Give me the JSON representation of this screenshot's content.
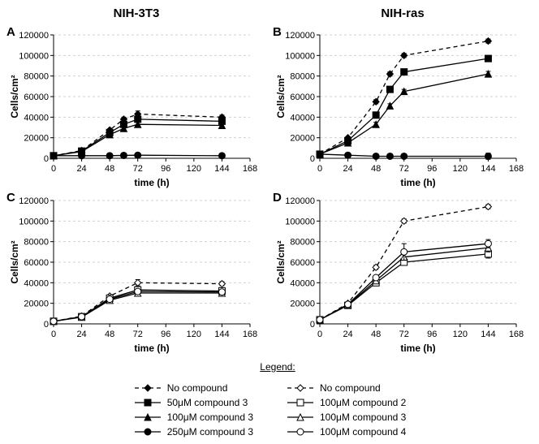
{
  "figure": {
    "columns": [
      "NIH-3T3",
      "NIH-ras"
    ],
    "panel_letters": [
      "A",
      "B",
      "C",
      "D"
    ],
    "x_axis": {
      "label": "time (h)",
      "min": 0,
      "max": 168,
      "tick_step": 24
    },
    "y_axis": {
      "label": "Cells/cm²",
      "min": 0,
      "max": 120000,
      "tick_step": 20000
    },
    "grid_color": "#d0d0d0",
    "background_color": "#ffffff",
    "axis_color": "#000000",
    "label_fontsize": 12,
    "title_fontsize": 15,
    "panels": {
      "A": {
        "series": [
          {
            "name": "no-compound",
            "marker": "diamond",
            "fill": "#000",
            "dash": true,
            "x": [
              0,
              24,
              48,
              60,
              72,
              144
            ],
            "y": [
              2500,
              7500,
              27500,
              38000,
              43000,
              40000
            ],
            "err": [
              0,
              0,
              0,
              2000,
              3000,
              2000
            ]
          },
          {
            "name": "50um-c3",
            "marker": "square",
            "fill": "#000",
            "dash": false,
            "x": [
              0,
              24,
              48,
              60,
              72,
              144
            ],
            "y": [
              2500,
              7000,
              25000,
              33000,
              38000,
              36000
            ],
            "err": [
              0,
              0,
              0,
              2000,
              2500,
              2000
            ]
          },
          {
            "name": "100um-c3",
            "marker": "triangle",
            "fill": "#000",
            "dash": false,
            "x": [
              0,
              24,
              48,
              60,
              72,
              144
            ],
            "y": [
              2500,
              6500,
              23000,
              29000,
              33000,
              32000
            ],
            "err": [
              0,
              0,
              0,
              2000,
              2000,
              2000
            ]
          },
          {
            "name": "250um-c3",
            "marker": "circle",
            "fill": "#000",
            "dash": false,
            "x": [
              0,
              24,
              48,
              60,
              72,
              144
            ],
            "y": [
              2500,
              2500,
              2500,
              2800,
              3000,
              2500
            ],
            "err": [
              0,
              0,
              0,
              0,
              0,
              0
            ]
          }
        ]
      },
      "B": {
        "series": [
          {
            "name": "no-compound",
            "marker": "diamond",
            "fill": "#000",
            "dash": true,
            "x": [
              0,
              24,
              48,
              60,
              72,
              144
            ],
            "y": [
              4000,
              20000,
              55000,
              82000,
              100000,
              114000
            ],
            "err": [
              0,
              0,
              2000,
              2000,
              2000,
              2000
            ]
          },
          {
            "name": "50um-c3",
            "marker": "square",
            "fill": "#000",
            "dash": false,
            "x": [
              0,
              24,
              48,
              60,
              72,
              144
            ],
            "y": [
              4000,
              17000,
              42000,
              67000,
              84000,
              97000
            ],
            "err": [
              0,
              0,
              2000,
              2500,
              2500,
              3000
            ]
          },
          {
            "name": "100um-c3",
            "marker": "triangle",
            "fill": "#000",
            "dash": false,
            "x": [
              0,
              24,
              48,
              60,
              72,
              144
            ],
            "y": [
              4000,
              15000,
              33000,
              51000,
              65000,
              82000
            ],
            "err": [
              0,
              0,
              2000,
              2000,
              2000,
              2500
            ]
          },
          {
            "name": "250um-c3",
            "marker": "circle",
            "fill": "#000",
            "dash": false,
            "x": [
              0,
              24,
              48,
              60,
              72,
              144
            ],
            "y": [
              4000,
              3000,
              2000,
              2000,
              2000,
              2000
            ],
            "err": [
              0,
              0,
              0,
              0,
              0,
              3000
            ]
          }
        ]
      },
      "C": {
        "series": [
          {
            "name": "no-compound",
            "marker": "diamond",
            "fill": "#fff",
            "dash": true,
            "x": [
              0,
              24,
              48,
              72,
              144
            ],
            "y": [
              2500,
              7500,
              27000,
              40000,
              39000
            ],
            "err": [
              0,
              0,
              0,
              3000,
              2000
            ]
          },
          {
            "name": "100um-c2",
            "marker": "square",
            "fill": "#fff",
            "dash": false,
            "x": [
              0,
              24,
              48,
              72,
              144
            ],
            "y": [
              2500,
              7000,
              25000,
              33000,
              32000
            ],
            "err": [
              0,
              0,
              0,
              2500,
              2000
            ]
          },
          {
            "name": "100um-c3",
            "marker": "triangle",
            "fill": "#fff",
            "dash": false,
            "x": [
              0,
              24,
              48,
              72,
              144
            ],
            "y": [
              2500,
              6500,
              23000,
              30000,
              30000
            ],
            "err": [
              0,
              0,
              0,
              2000,
              2000
            ]
          },
          {
            "name": "100um-c4",
            "marker": "circle",
            "fill": "#fff",
            "dash": false,
            "x": [
              0,
              24,
              48,
              72,
              144
            ],
            "y": [
              2500,
              7000,
              24000,
              31500,
              31000
            ],
            "err": [
              0,
              0,
              0,
              2000,
              2000
            ]
          }
        ]
      },
      "D": {
        "series": [
          {
            "name": "no-compound",
            "marker": "diamond",
            "fill": "#fff",
            "dash": true,
            "x": [
              0,
              24,
              48,
              72,
              144
            ],
            "y": [
              4000,
              20000,
              55000,
              100000,
              114000
            ],
            "err": [
              0,
              0,
              2000,
              2000,
              2000
            ]
          },
          {
            "name": "100um-c2",
            "marker": "square",
            "fill": "#fff",
            "dash": false,
            "x": [
              0,
              24,
              48,
              72,
              144
            ],
            "y": [
              4000,
              18000,
              40000,
              60000,
              68000
            ],
            "err": [
              0,
              0,
              2000,
              3000,
              4000
            ]
          },
          {
            "name": "100um-c3",
            "marker": "triangle",
            "fill": "#fff",
            "dash": false,
            "x": [
              0,
              24,
              48,
              72,
              144
            ],
            "y": [
              4000,
              18500,
              42000,
              65000,
              74000
            ],
            "err": [
              0,
              0,
              2000,
              3000,
              4000
            ]
          },
          {
            "name": "100um-c4",
            "marker": "circle",
            "fill": "#fff",
            "dash": false,
            "x": [
              0,
              24,
              48,
              72,
              144
            ],
            "y": [
              4000,
              19000,
              45000,
              70000,
              78000
            ],
            "err": [
              0,
              0,
              2000,
              8000,
              4000
            ]
          }
        ]
      }
    },
    "legend": {
      "title": "Legend:",
      "left": [
        {
          "marker": "diamond",
          "fill": "#000",
          "dash": true,
          "label": "No compound"
        },
        {
          "marker": "square",
          "fill": "#000",
          "dash": false,
          "label": "50μM compound 3"
        },
        {
          "marker": "triangle",
          "fill": "#000",
          "dash": false,
          "label": "100μM compound 3"
        },
        {
          "marker": "circle",
          "fill": "#000",
          "dash": false,
          "label": "250μM compound 3"
        }
      ],
      "right": [
        {
          "marker": "diamond",
          "fill": "#fff",
          "dash": true,
          "label": "No compound"
        },
        {
          "marker": "square",
          "fill": "#fff",
          "dash": false,
          "label": "100μM compound 2"
        },
        {
          "marker": "triangle",
          "fill": "#fff",
          "dash": false,
          "label": "100μM compound 3"
        },
        {
          "marker": "circle",
          "fill": "#fff",
          "dash": false,
          "label": "100μM compound 4"
        }
      ]
    }
  }
}
